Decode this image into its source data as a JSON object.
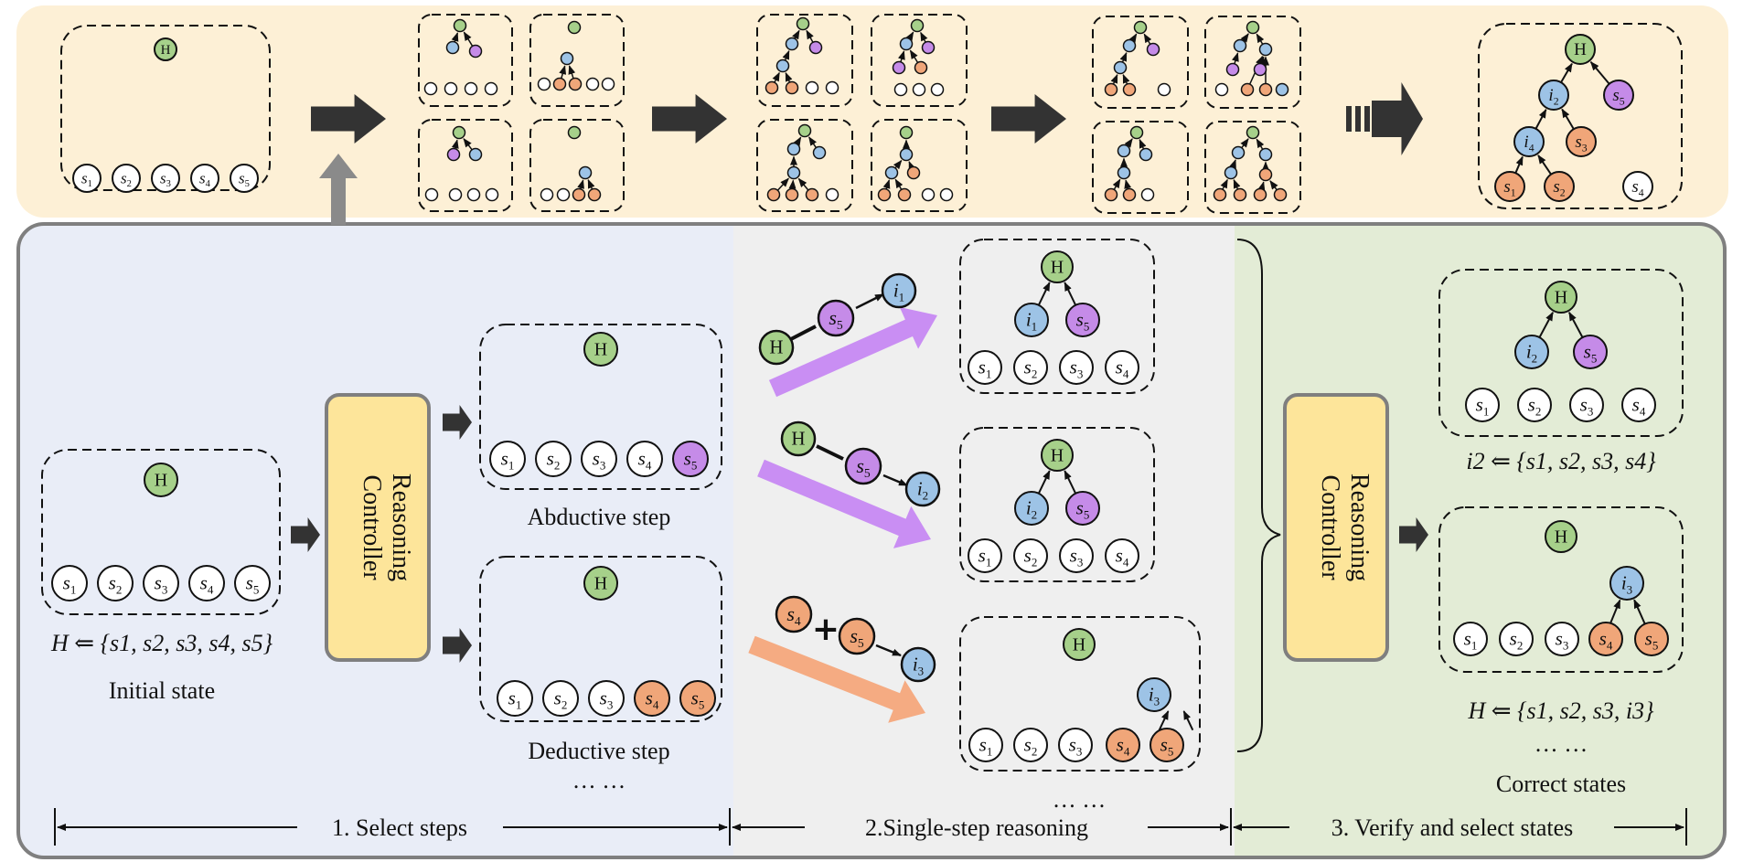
{
  "colors": {
    "top_band": "#fdf0d6",
    "panel_select": "#e9edf7",
    "panel_single": "#efefef",
    "panel_verify": "#e3ecd6",
    "controller": "#fde59a",
    "controller_border": "#7f7f7f",
    "green": "#a6d08a",
    "blue": "#9dc3e6",
    "purple": "#c58be8",
    "orange": "#f0a679",
    "white": "#ffffff",
    "arrow_dark": "#333333",
    "arrow_gray": "#8a8a8a",
    "arrow_purple": "#c98ef3",
    "arrow_orange": "#f5ab82"
  },
  "nodes": {
    "H": "H",
    "s1": "s1",
    "s2": "s2",
    "s3": "s3",
    "s4": "s4",
    "s5": "s5",
    "i1": "i1",
    "i2": "i2",
    "i3": "i3",
    "i4": "i4"
  },
  "controller": {
    "line1": "Reasoning",
    "line2": "Controller"
  },
  "initial": {
    "formula": "H ⇐ {s1, s2, s3, s4, s5}",
    "caption": "Initial state"
  },
  "steps": {
    "abductive": "Abductive step",
    "deductive": "Deductive step",
    "ellipsis": "… …"
  },
  "single": {
    "op_plus": "+",
    "ellipsis": "… …"
  },
  "verify": {
    "formula_i2": "i2 ⇐ {s1, s2, s3, s4}",
    "formula_H": "H ⇐ {s1, s2, s3, i3}",
    "ellipsis": "… …",
    "caption": "Correct states"
  },
  "phases": {
    "p1": "1. Select steps",
    "p2": "2.Single-step reasoning",
    "p3": "3. Verify and select states"
  }
}
